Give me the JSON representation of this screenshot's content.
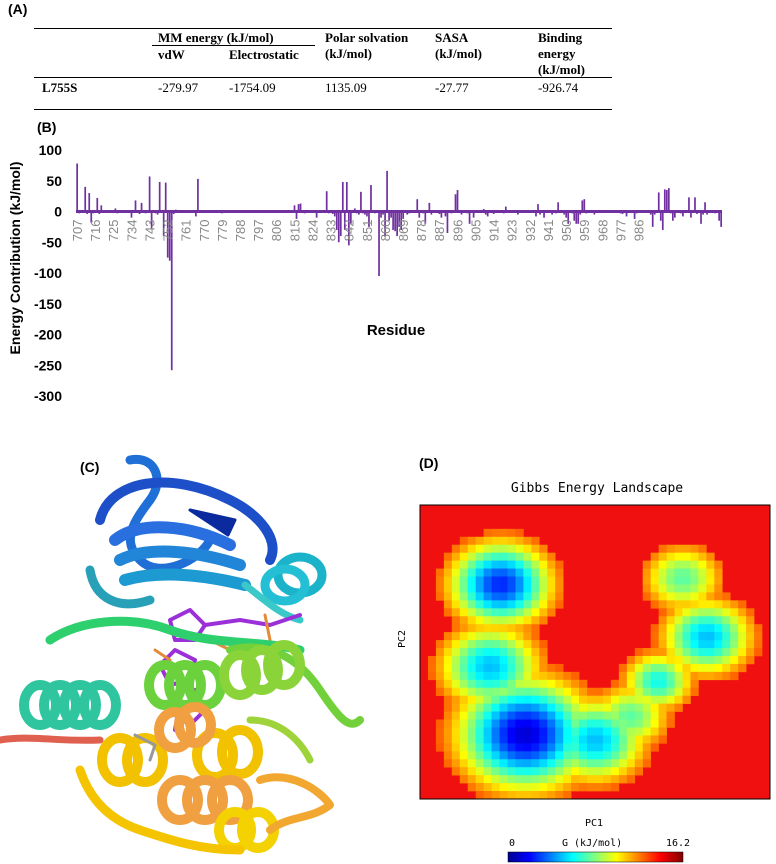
{
  "panels": {
    "a": "(A)",
    "b": "(B)",
    "c": "(C)",
    "d": "(D)"
  },
  "table": {
    "mm_energy": "MM energy  (kJ/mol)",
    "vdw": "vdW",
    "electrostatic": "Electrostatic",
    "polar": [
      "Polar solvation",
      "(kJ/mol)"
    ],
    "sasa": [
      "SASA",
      "(kJ/mol)"
    ],
    "binding": [
      "Binding",
      "energy",
      "(kJ/mol)"
    ],
    "row": {
      "name": "L755S",
      "vdw": "-279.97",
      "electrostatic": "-1754.09",
      "polar": "1135.09",
      "sasa": "-27.77",
      "binding": "-926.74"
    }
  },
  "chart_data": {
    "type": "bar",
    "ylabel": "Energy Contribution (kJ/mol)",
    "xlabel": "Residue",
    "ylim": [
      -300,
      100
    ],
    "yticks": [
      100,
      50,
      0,
      -50,
      -100,
      -150,
      -200,
      -250,
      -300
    ],
    "xticks": [
      "707",
      "716",
      "725",
      "734",
      "743",
      "752",
      "761",
      "770",
      "779",
      "788",
      "797",
      "806",
      "815",
      "824",
      "833",
      "842",
      "851",
      "860",
      "869",
      "878",
      "887",
      "896",
      "905",
      "914",
      "923",
      "932",
      "941",
      "950",
      "959",
      "968",
      "977",
      "986"
    ],
    "x_start": 707,
    "color": "#7030a0",
    "values": [
      78,
      -3,
      2,
      -1,
      40,
      -4,
      30,
      -18,
      -3,
      -1,
      22,
      -4,
      10,
      -2,
      -1,
      -1,
      -1,
      -1,
      -2,
      5,
      -3,
      -1,
      -1,
      -1,
      -1,
      -1,
      -2,
      -10,
      -2,
      18,
      -2,
      -4,
      14,
      -2,
      -3,
      -2,
      57,
      -28,
      -2,
      -3,
      -5,
      48,
      -2,
      -40,
      47,
      -75,
      -80,
      -258,
      -4,
      3,
      -2,
      -1,
      -1,
      -1,
      2,
      -1,
      -1,
      -2,
      -2,
      -8,
      53,
      -2,
      -1,
      -1,
      -1,
      -1,
      -1,
      -2,
      -1,
      -1,
      -1,
      -2,
      -3,
      -1,
      -1,
      -1,
      -1,
      -1,
      -1,
      -1,
      -1,
      -1,
      -1,
      -1,
      -1,
      -1,
      -2,
      -1,
      -1,
      -1,
      -1,
      -1,
      -1,
      -1,
      -1,
      -1,
      -1,
      -1,
      -1,
      -1,
      -1,
      -1,
      -1,
      -1,
      -1,
      -1,
      -1,
      -1,
      10,
      -12,
      12,
      13,
      -2,
      -3,
      -1,
      -1,
      -1,
      -1,
      -1,
      -10,
      -2,
      -1,
      -2,
      -1,
      33,
      -3,
      -2,
      -4,
      -8,
      -30,
      -50,
      -40,
      48,
      -30,
      48,
      -55,
      -20,
      -2,
      5,
      -3,
      -5,
      32,
      -3,
      -5,
      -8,
      -25,
      43,
      -2,
      -3,
      -1,
      -105,
      -10,
      -5,
      -40,
      66,
      -15,
      -10,
      -30,
      -32,
      -40,
      -25,
      -30,
      -12,
      -2,
      -5,
      -3,
      -1,
      -1,
      -2,
      20,
      -10,
      -2,
      -3,
      -20,
      -1,
      14,
      -5,
      -1,
      -1,
      -2,
      -4,
      -10,
      -2,
      -8,
      -35,
      -2,
      -3,
      -1,
      28,
      35,
      -2,
      -5,
      -2,
      -1,
      -3,
      -20,
      -2,
      -10,
      -1,
      -2,
      -1,
      -1,
      4,
      -5,
      -8,
      -1,
      -2,
      -4,
      -1,
      -1,
      -1,
      -1,
      -3,
      8,
      -2,
      -1,
      -1,
      -1,
      -2,
      -5,
      -1,
      -2,
      -1,
      -1,
      -1,
      -2,
      -1,
      -1,
      -8,
      12,
      -5,
      -1,
      -10,
      -1,
      -2,
      -1,
      -5,
      -2,
      -3,
      15,
      -2,
      -1,
      -5,
      -10,
      -20,
      -2,
      -3,
      -15,
      -20,
      -20,
      -5,
      18,
      20,
      -3,
      -2,
      -1,
      -1,
      -5,
      -1,
      -1,
      -1,
      -1,
      -2,
      -1,
      -1,
      -1,
      -1,
      -1,
      -1,
      -2,
      -3,
      -4,
      -1,
      -8,
      -1,
      -1,
      -2,
      -12,
      -3,
      -2,
      -1,
      -1,
      -2,
      -1,
      -1,
      -5,
      -25,
      -5,
      -2,
      31,
      -15,
      -30,
      36,
      35,
      38,
      -3,
      -15,
      -10,
      -1,
      -2,
      -3,
      -8,
      -1,
      -2,
      23,
      -10,
      -2,
      23,
      -4,
      -2,
      -20,
      -5,
      15,
      -5,
      -2,
      -1,
      -1,
      -3,
      -1,
      -15,
      -25
    ]
  },
  "protein": {
    "description_colors": [
      "#00008b",
      "#1e90ff",
      "#00ced1",
      "#2ecc71",
      "#7fff00",
      "#ffd700",
      "#ff8c00",
      "#e9967a"
    ]
  },
  "fel": {
    "title": "Gibbs Energy Landscape",
    "xlabel": "PC1",
    "ylabel": "PC2",
    "colorbar_label": "G  (kJ/mol)",
    "colorbar_min": "0",
    "colorbar_max": "16.2"
  }
}
